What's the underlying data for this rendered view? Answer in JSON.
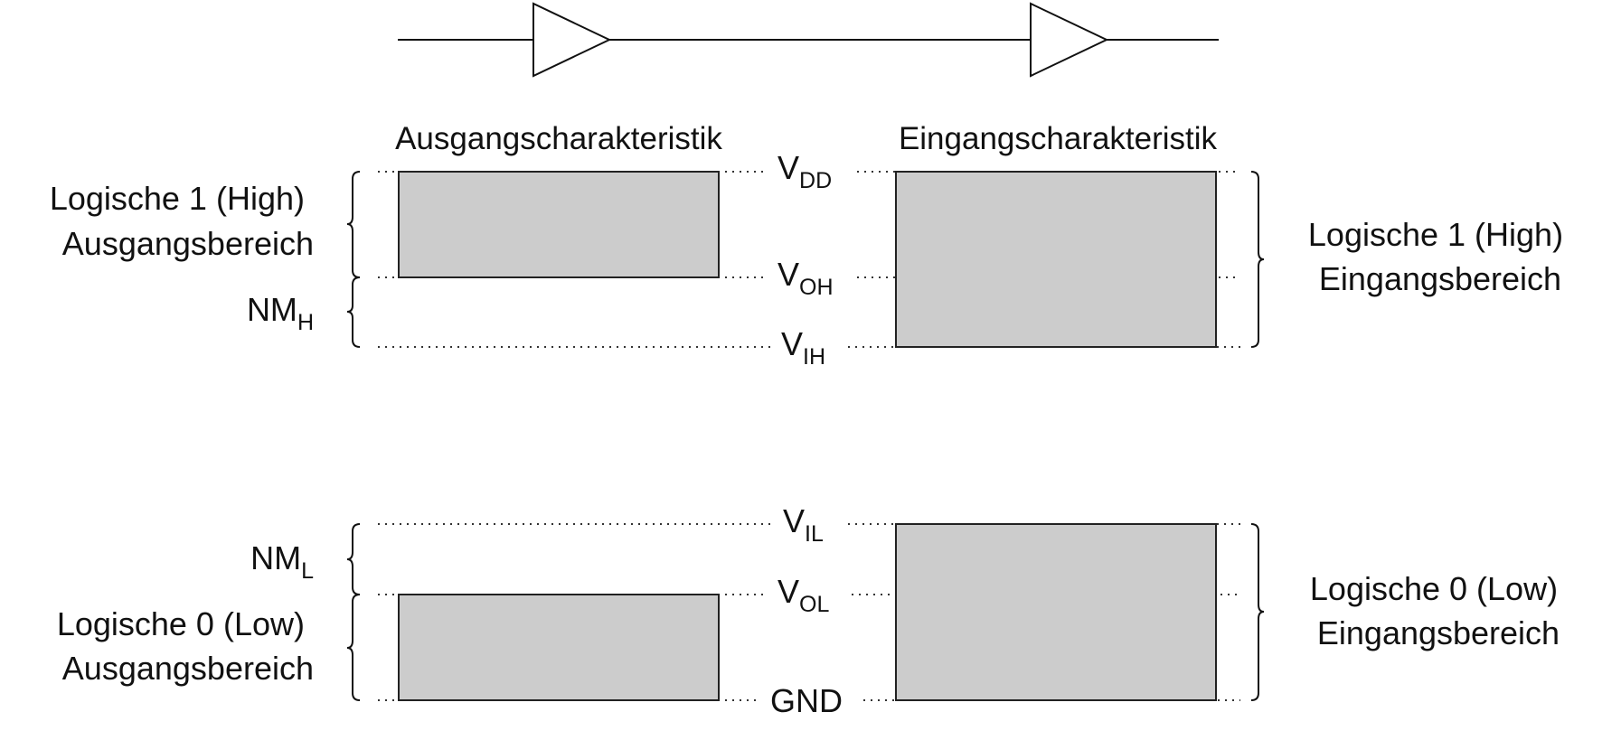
{
  "headers": {
    "output": "Ausgangscharakteristik",
    "input": "Eingangscharakteristik"
  },
  "levels": {
    "vdd": {
      "main": "V",
      "sub": "DD"
    },
    "voh": {
      "main": "V",
      "sub": "OH"
    },
    "vih": {
      "main": "V",
      "sub": "IH"
    },
    "vil": {
      "main": "V",
      "sub": "IL"
    },
    "vol": {
      "main": "V",
      "sub": "OL"
    },
    "gnd": {
      "main": "GND",
      "sub": ""
    }
  },
  "left_labels": {
    "high_line1": "Logische 1 (High)",
    "high_line2": "Ausgangsbereich",
    "nmh_main": "NM",
    "nmh_sub": "H",
    "nml_main": "NM",
    "nml_sub": "L",
    "low_line1": "Logische 0 (Low)",
    "low_line2": "Ausgangsbereich"
  },
  "right_labels": {
    "high_line1": "Logische 1 (High)",
    "high_line2": "Eingangsbereich",
    "low_line1": "Logische 0 (Low)",
    "low_line2": "Eingangsbereich"
  },
  "colors": {
    "box_fill": "#cccccc",
    "line": "#111111"
  }
}
